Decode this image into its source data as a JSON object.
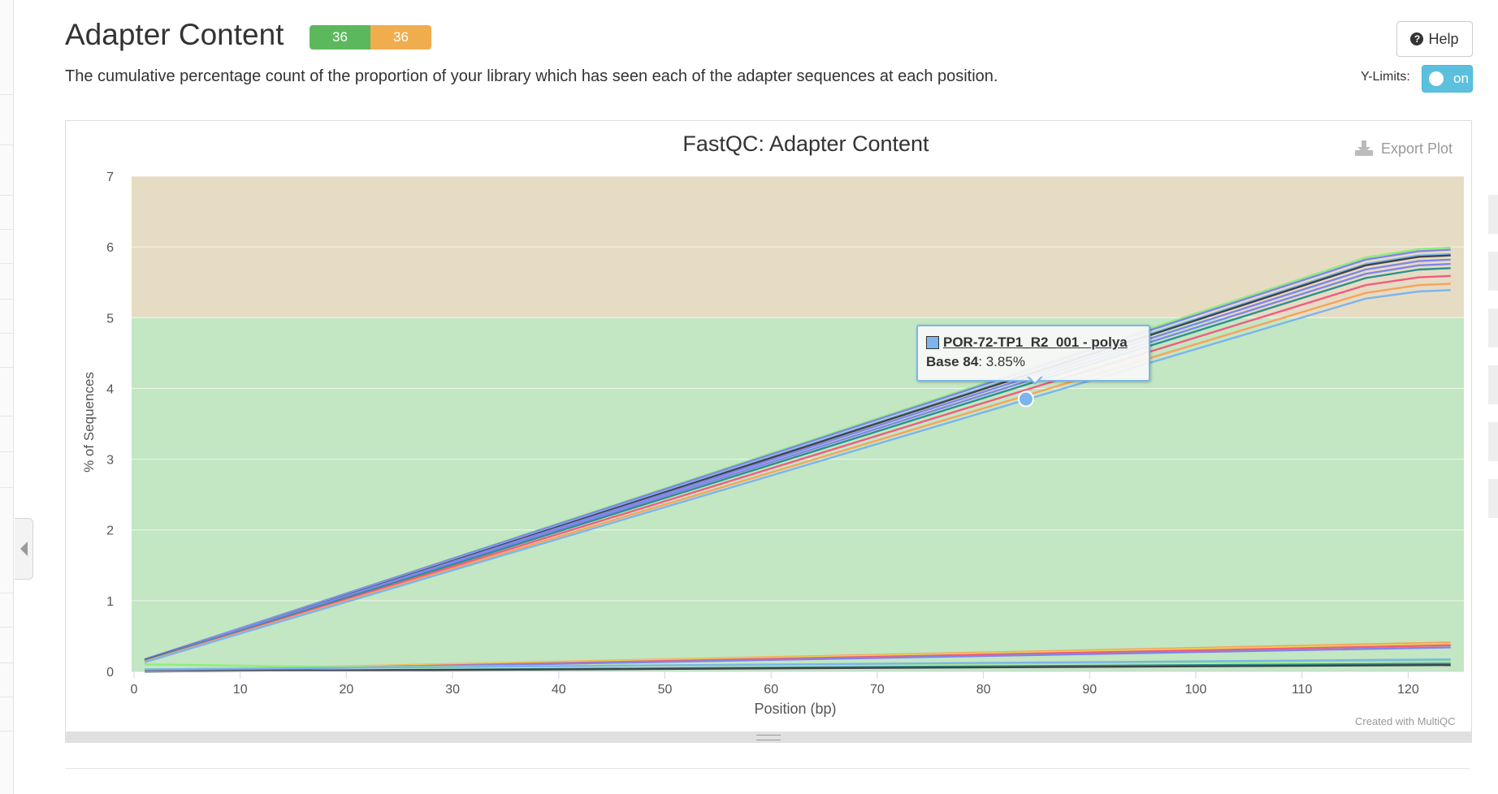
{
  "header": {
    "title": "Adapter Content",
    "badge_pass": "36",
    "badge_warn": "36",
    "help_label": "Help",
    "description": "The cumulative percentage count of the proportion of your library which has seen each of the adapter sequences at each position.",
    "ylimits_label": "Y-Limits:",
    "ylimits_toggle": "on"
  },
  "plot": {
    "export_label": "Export Plot",
    "credit": "Created with MultiQC"
  },
  "tooltip": {
    "series_name": "POR-72-TP1_R2_001 - polya",
    "base_label": "Base 84",
    "value_text": ": 3.85%",
    "x": 84,
    "y": 3.85
  },
  "colors": {
    "pass": "#5cb85c",
    "warn": "#f0ad4e",
    "band_pass": "#c3e6c3",
    "band_warn": "#e6dcc3",
    "toggle": "#5bc0de"
  },
  "icons": {
    "help": "question-circle-icon",
    "export": "download-icon",
    "collapse": "chevron-left-icon"
  },
  "chart_data": {
    "type": "line",
    "title": "FastQC: Adapter Content",
    "xlabel": "Position (bp)",
    "ylabel": "% of Sequences",
    "xlim": [
      0,
      125
    ],
    "ylim": [
      0,
      7
    ],
    "x_ticks": [
      0,
      10,
      20,
      30,
      40,
      50,
      60,
      70,
      80,
      90,
      100,
      110,
      120
    ],
    "y_ticks": [
      0,
      1,
      2,
      3,
      4,
      5,
      6,
      7
    ],
    "bands": [
      {
        "from": 0,
        "to": 5,
        "color": "#c3e6c3"
      },
      {
        "from": 5,
        "to": 7,
        "color": "#e6dcc3"
      }
    ],
    "upper_series": [
      {
        "color": "#90ed7d",
        "values": [
          [
            1,
            0.17
          ],
          [
            9,
            0.56
          ],
          [
            116,
            5.85
          ],
          [
            121,
            5.97
          ],
          [
            124,
            5.99
          ]
        ]
      },
      {
        "color": "#8085e9",
        "values": [
          [
            1,
            0.17
          ],
          [
            9,
            0.56
          ],
          [
            116,
            5.82
          ],
          [
            121,
            5.94
          ],
          [
            124,
            5.96
          ]
        ]
      },
      {
        "color": "#7cb5ec",
        "values": [
          [
            1,
            0.16
          ],
          [
            9,
            0.55
          ],
          [
            116,
            5.76
          ],
          [
            121,
            5.88
          ],
          [
            124,
            5.9
          ]
        ]
      },
      {
        "color": "#434348",
        "values": [
          [
            1,
            0.16
          ],
          [
            9,
            0.54
          ],
          [
            116,
            5.74
          ],
          [
            121,
            5.86
          ],
          [
            124,
            5.88
          ]
        ]
      },
      {
        "color": "#8085e9",
        "values": [
          [
            1,
            0.15
          ],
          [
            9,
            0.54
          ],
          [
            116,
            5.68
          ],
          [
            121,
            5.8
          ],
          [
            124,
            5.82
          ]
        ]
      },
      {
        "color": "#8085e9",
        "values": [
          [
            1,
            0.15
          ],
          [
            9,
            0.53
          ],
          [
            116,
            5.62
          ],
          [
            121,
            5.74
          ],
          [
            124,
            5.76
          ]
        ]
      },
      {
        "color": "#2b908f",
        "values": [
          [
            1,
            0.15
          ],
          [
            9,
            0.52
          ],
          [
            116,
            5.56
          ],
          [
            121,
            5.68
          ],
          [
            124,
            5.7
          ]
        ]
      },
      {
        "color": "#f15c80",
        "values": [
          [
            1,
            0.14
          ],
          [
            9,
            0.51
          ],
          [
            116,
            5.46
          ],
          [
            121,
            5.57
          ],
          [
            124,
            5.59
          ]
        ]
      },
      {
        "color": "#f7a35c",
        "values": [
          [
            1,
            0.14
          ],
          [
            9,
            0.5
          ],
          [
            116,
            5.35
          ],
          [
            121,
            5.46
          ],
          [
            124,
            5.48
          ]
        ]
      },
      {
        "color": "#7cb5ec",
        "values": [
          [
            1,
            0.13
          ],
          [
            9,
            0.49
          ],
          [
            116,
            5.27
          ],
          [
            121,
            5.37
          ],
          [
            124,
            5.39
          ]
        ]
      }
    ],
    "lower_series": [
      {
        "color": "#f7a35c",
        "values": [
          [
            1,
            0.01
          ],
          [
            124,
            0.41
          ]
        ]
      },
      {
        "color": "#e4d354",
        "values": [
          [
            1,
            0.01
          ],
          [
            124,
            0.39
          ]
        ]
      },
      {
        "color": "#f15c80",
        "values": [
          [
            1,
            0.0
          ],
          [
            124,
            0.37
          ]
        ]
      },
      {
        "color": "#8085e9",
        "values": [
          [
            1,
            0.0
          ],
          [
            124,
            0.34
          ]
        ]
      },
      {
        "color": "#90ed7d",
        "values": [
          [
            1,
            0.1
          ],
          [
            20,
            0.06
          ],
          [
            124,
            0.15
          ]
        ]
      },
      {
        "color": "#7cb5ec",
        "values": [
          [
            1,
            0.03
          ],
          [
            124,
            0.17
          ]
        ]
      },
      {
        "color": "#2b908f",
        "values": [
          [
            1,
            0.0
          ],
          [
            124,
            0.11
          ]
        ]
      },
      {
        "color": "#434348",
        "values": [
          [
            1,
            0.0
          ],
          [
            124,
            0.09
          ]
        ]
      }
    ]
  }
}
